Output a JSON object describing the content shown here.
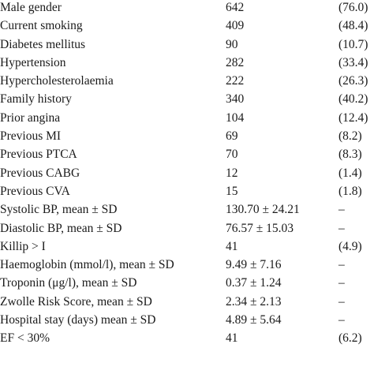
{
  "rows": [
    {
      "label": "Male gender",
      "value": "642",
      "pct": "(76.0)"
    },
    {
      "label": "Current smoking",
      "value": "409",
      "pct": "(48.4)"
    },
    {
      "label": "Diabetes mellitus",
      "value": "90",
      "pct": "(10.7)"
    },
    {
      "label": "Hypertension",
      "value": "282",
      "pct": "(33.4)"
    },
    {
      "label": "Hypercholesterolaemia",
      "value": "222",
      "pct": "(26.3)"
    },
    {
      "label": "Family history",
      "value": "340",
      "pct": "(40.2)"
    },
    {
      "label": "Prior angina",
      "value": "104",
      "pct": "(12.4)"
    },
    {
      "label": "Previous MI",
      "value": "69",
      "pct": "(8.2)"
    },
    {
      "label": "Previous PTCA",
      "value": "70",
      "pct": "(8.3)"
    },
    {
      "label": "Previous CABG",
      "value": "12",
      "pct": "(1.4)"
    },
    {
      "label": "Previous CVA",
      "value": "15",
      "pct": "(1.8)"
    },
    {
      "label": "Systolic BP, mean ± SD",
      "value": "130.70 ± 24.21",
      "pct": "–"
    },
    {
      "label": "Diastolic BP, mean ± SD",
      "value": "76.57 ± 15.03",
      "pct": "–"
    },
    {
      "label": "Killip > I",
      "value": "41",
      "pct": "(4.9)"
    },
    {
      "label": "Haemoglobin (mmol/l), mean ± SD",
      "value": "9.49 ± 7.16",
      "pct": "–"
    },
    {
      "label": "Troponin (μg/l), mean ± SD",
      "value": "0.37 ± 1.24",
      "pct": "–"
    },
    {
      "label": "Zwolle Risk Score, mean ± SD",
      "value": "2.34 ± 2.13",
      "pct": "–"
    },
    {
      "label": "Hospital stay (days) mean ± SD",
      "value": "4.89 ± 5.64",
      "pct": "–"
    },
    {
      "label": "EF < 30%",
      "value": "41",
      "pct": "(6.2)"
    }
  ]
}
